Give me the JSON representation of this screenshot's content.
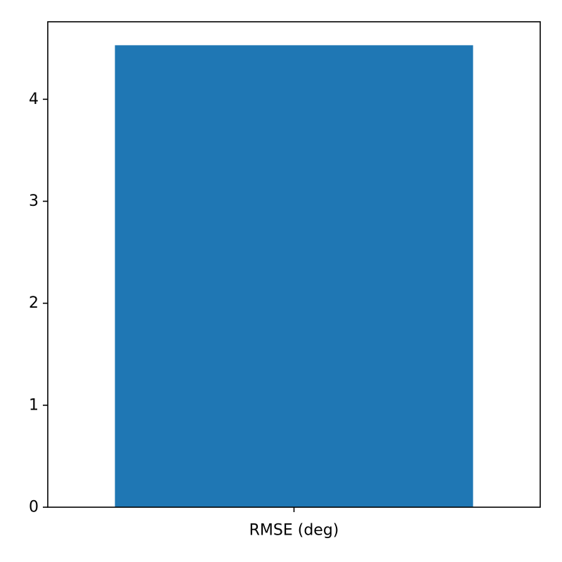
{
  "chart_data": {
    "type": "bar",
    "categories": [
      "RMSE (deg)"
    ],
    "values": [
      4.53
    ],
    "title": "",
    "xlabel": "",
    "ylabel": "",
    "ylim": [
      0,
      4.76
    ],
    "yticks": [
      0,
      1,
      2,
      3,
      4
    ],
    "grid": false,
    "legend": "none",
    "bar_color": "#1f77b4"
  }
}
